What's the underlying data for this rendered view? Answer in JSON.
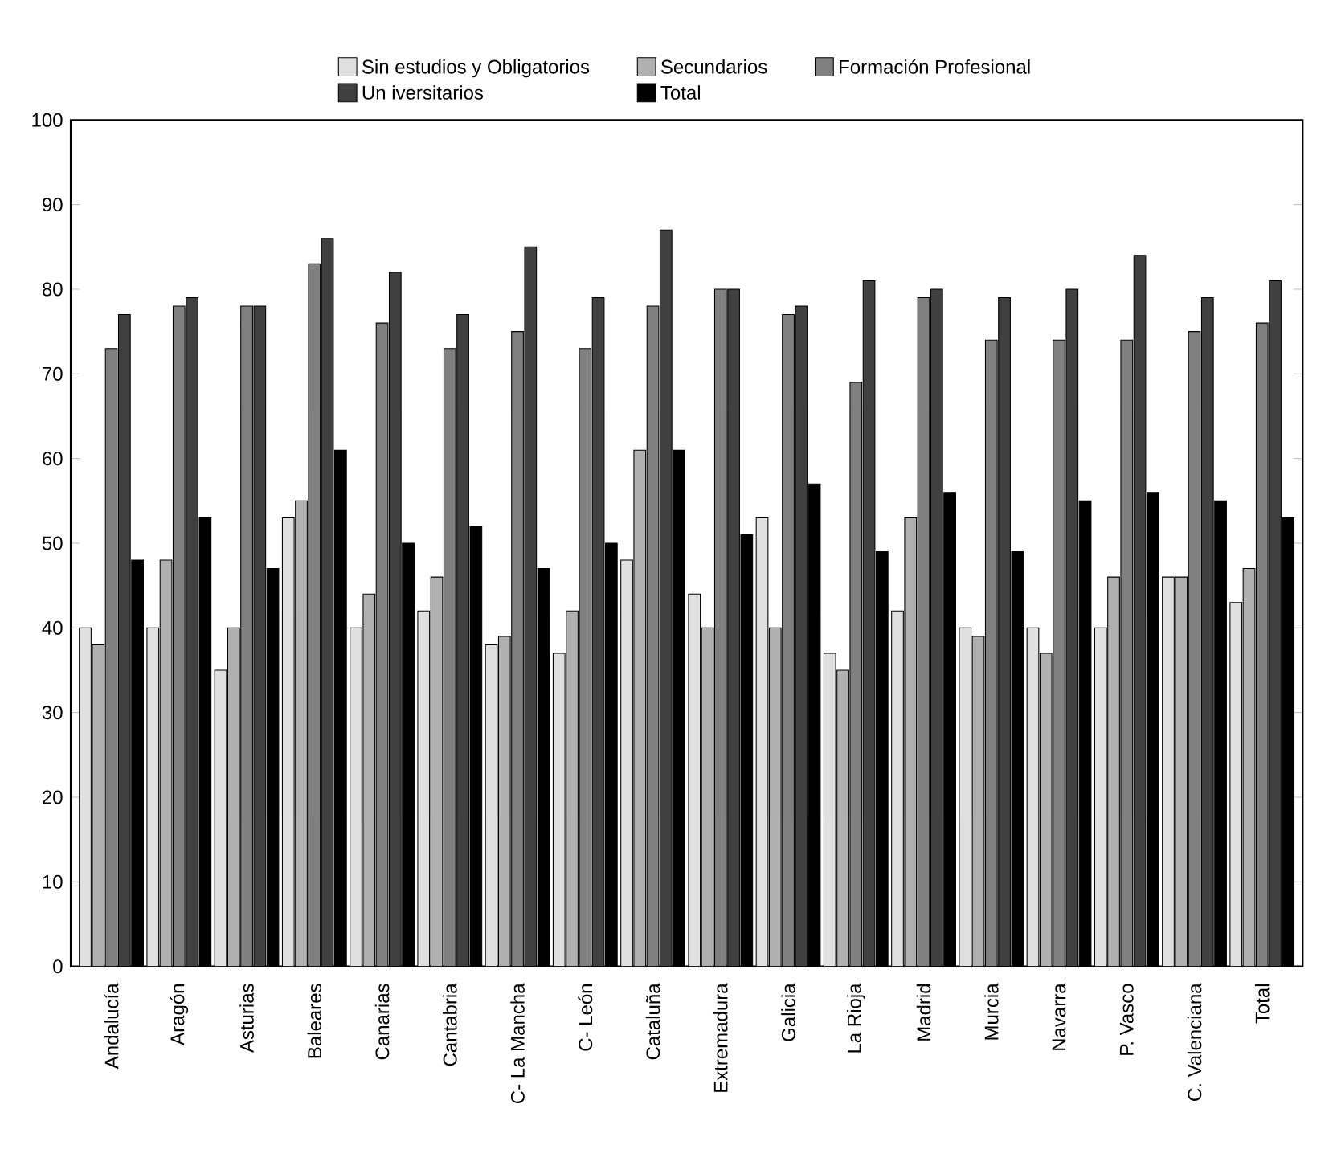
{
  "chart_data": {
    "type": "bar",
    "categories": [
      "Andalucía",
      "Aragón",
      "Asturias",
      "Baleares",
      "Canarias",
      "Cantabria",
      "C- La Mancha",
      "C- León",
      "Cataluña",
      "Extremadura",
      "Galicia",
      "La Rioja",
      "Madrid",
      "Murcia",
      "Navarra",
      "P. Vasco",
      "C. Valenciana",
      "Total"
    ],
    "series": [
      {
        "name": "Sin estudios y Obligatorios",
        "color": "#e0e0e0",
        "values": [
          40,
          40,
          35,
          53,
          40,
          42,
          38,
          37,
          48,
          44,
          53,
          37,
          42,
          40,
          40,
          40,
          46,
          43
        ]
      },
      {
        "name": "Secundarios",
        "color": "#b0b0b0",
        "values": [
          38,
          48,
          40,
          55,
          44,
          46,
          39,
          42,
          61,
          40,
          40,
          35,
          53,
          39,
          37,
          46,
          46,
          47
        ]
      },
      {
        "name": "Formación Profesional",
        "color": "#808080",
        "values": [
          73,
          78,
          78,
          83,
          76,
          73,
          75,
          73,
          78,
          80,
          77,
          69,
          79,
          74,
          74,
          74,
          75,
          76
        ]
      },
      {
        "name": "Un iversitarios",
        "color": "#404040",
        "values": [
          77,
          79,
          78,
          86,
          82,
          77,
          85,
          79,
          87,
          80,
          78,
          81,
          80,
          79,
          80,
          84,
          79,
          81
        ]
      },
      {
        "name": "Total",
        "color": "#000000",
        "values": [
          48,
          53,
          47,
          61,
          50,
          52,
          47,
          50,
          61,
          51,
          57,
          49,
          56,
          49,
          55,
          56,
          55,
          53
        ]
      }
    ],
    "ylim": [
      0,
      100
    ],
    "yticks": [
      0,
      10,
      20,
      30,
      40,
      50,
      60,
      70,
      80,
      90,
      100
    ],
    "legend": "top"
  }
}
